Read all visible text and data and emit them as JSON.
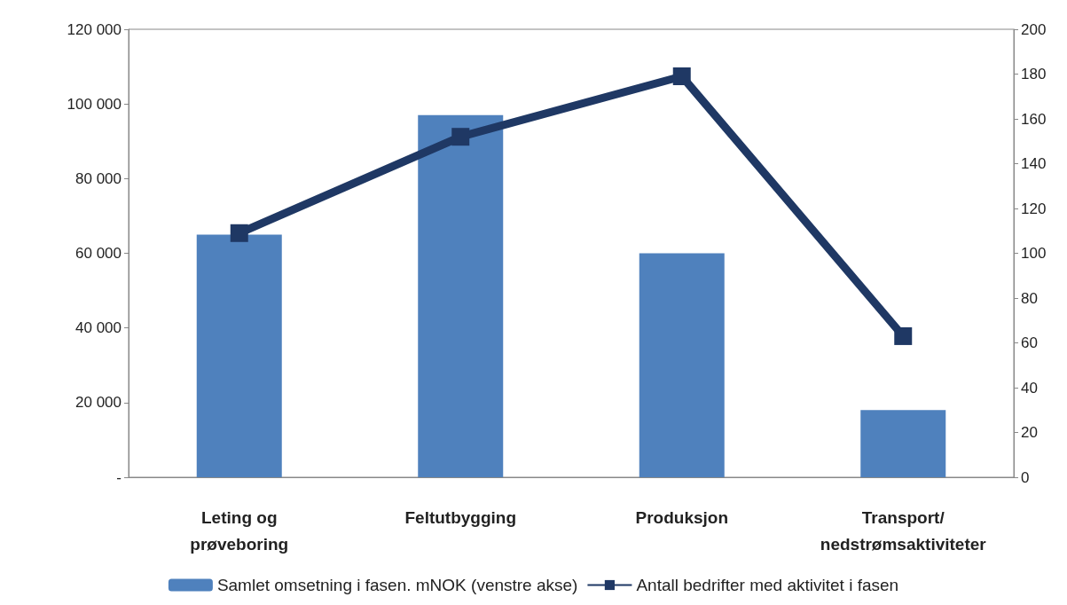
{
  "chart_data": {
    "type": "bar",
    "categories": [
      "Leting og\nprøveboring",
      "Feltutbygging",
      "Produksjon",
      "Transport/\nnedstrømsaktiviteter"
    ],
    "series": [
      {
        "name": "Samlet omsetning i fasen. mNOK (venstre akse)",
        "color": "#4f81bd",
        "values": [
          65000,
          97000,
          60000,
          18000
        ]
      },
      {
        "name": "Antall bedrifter med aktivitet i fasen",
        "type": "line",
        "axis": "y2",
        "color": "#1f3864",
        "marker": "square",
        "values": [
          109,
          152,
          179,
          63
        ]
      }
    ],
    "ylim": [
      0,
      120000
    ],
    "yticks": [
      {
        "value": 0,
        "label": "-"
      },
      {
        "value": 20000,
        "label": "20 000"
      },
      {
        "value": 40000,
        "label": "40 000"
      },
      {
        "value": 60000,
        "label": "60 000"
      },
      {
        "value": 80000,
        "label": "80 000"
      },
      {
        "value": 100000,
        "label": "100 000"
      },
      {
        "value": 120000,
        "label": "120 000"
      }
    ],
    "y2lim": [
      0,
      200
    ],
    "y2ticks": [
      0,
      20,
      40,
      60,
      80,
      100,
      120,
      140,
      160,
      180,
      200
    ],
    "legend": "bottom",
    "grid": false
  }
}
